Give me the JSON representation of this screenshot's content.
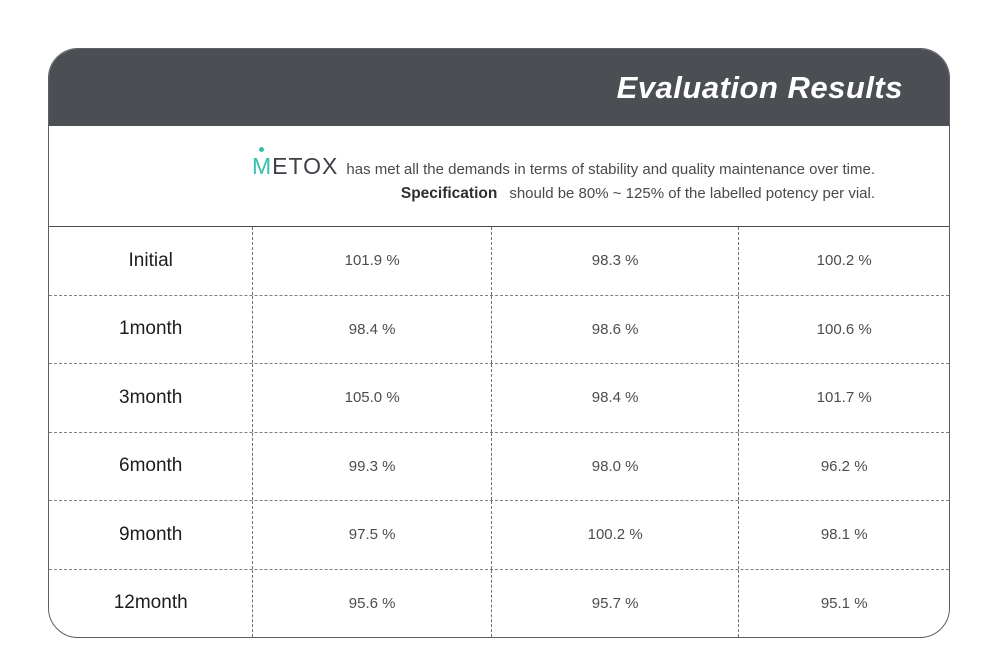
{
  "header": {
    "title": "Evaluation Results"
  },
  "intro": {
    "brand_highlight": "M",
    "brand_rest": "ETOX",
    "statement": "has met all the demands in terms of stability and quality maintenance over time.",
    "spec_label": "Specification",
    "spec_text": "should be 80% ~ 125% of the labelled potency per vial."
  },
  "colors": {
    "title_bar_bg": "#4b4e53",
    "brand_accent": "#36bfa9",
    "card_border": "#5c5f63",
    "dashed_line": "#777777",
    "label_text": "#1d1d1d",
    "value_text": "#4d4d4d"
  },
  "table": {
    "rows": [
      {
        "label": "Initial",
        "values": [
          "101.9 %",
          "98.3 %",
          "100.2 %"
        ]
      },
      {
        "label": "1month",
        "values": [
          "98.4 %",
          "98.6 %",
          "100.6 %"
        ]
      },
      {
        "label": "3month",
        "values": [
          "105.0 %",
          "98.4 %",
          "101.7 %"
        ]
      },
      {
        "label": "6month",
        "values": [
          "99.3 %",
          "98.0 %",
          "96.2 %"
        ]
      },
      {
        "label": "9month",
        "values": [
          "97.5 %",
          "100.2 %",
          "98.1 %"
        ]
      },
      {
        "label": "12month",
        "values": [
          "95.6 %",
          "95.7 %",
          "95.1 %"
        ]
      }
    ]
  }
}
